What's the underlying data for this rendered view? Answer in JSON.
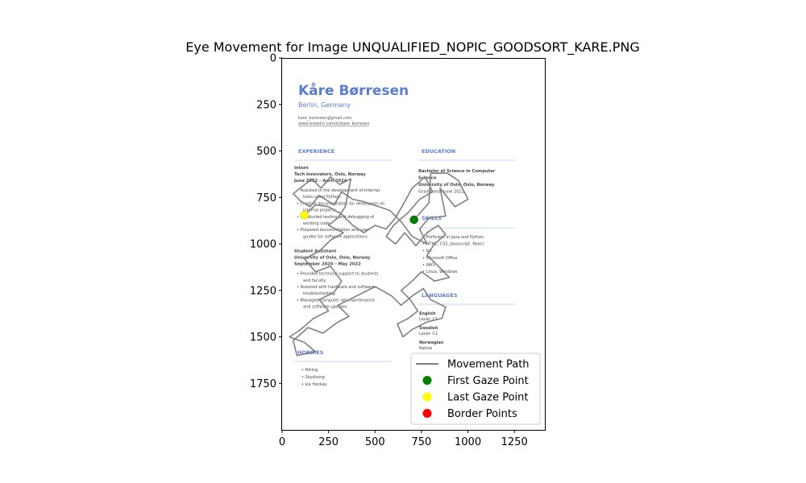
{
  "chart_data": {
    "type": "scatter",
    "title": "Eye Movement for Image UNQUALIFIED_NOPIC_GOODSORT_KARE.PNG",
    "xlabel": "",
    "ylabel": "",
    "xlim": [
      0,
      1414
    ],
    "ylim": [
      2000,
      0
    ],
    "x_ticks": [
      0,
      250,
      500,
      750,
      1000,
      1250
    ],
    "y_ticks": [
      0,
      250,
      500,
      750,
      1000,
      1250,
      1500,
      1750
    ],
    "grid": false,
    "legend_position": "lower-right",
    "legend": [
      {
        "label": "Movement Path",
        "kind": "line",
        "color": "#808080"
      },
      {
        "label": "First Gaze Point",
        "kind": "dot",
        "color": "#008000"
      },
      {
        "label": "Last Gaze Point",
        "kind": "dot",
        "color": "#ffff00"
      },
      {
        "label": "Border Points",
        "kind": "dot",
        "color": "#ff0000"
      }
    ],
    "first_gaze": [
      710,
      870
    ],
    "last_gaze": [
      120,
      845
    ],
    "movement_path": [
      [
        710,
        870
      ],
      [
        790,
        780
      ],
      [
        800,
        620
      ],
      [
        890,
        620
      ],
      [
        950,
        660
      ],
      [
        1000,
        760
      ],
      [
        930,
        800
      ],
      [
        850,
        700
      ],
      [
        880,
        850
      ],
      [
        790,
        860
      ],
      [
        740,
        920
      ],
      [
        780,
        1000
      ],
      [
        700,
        960
      ],
      [
        640,
        880
      ],
      [
        580,
        820
      ],
      [
        520,
        800
      ],
      [
        430,
        770
      ],
      [
        380,
        760
      ],
      [
        320,
        720
      ],
      [
        280,
        790
      ],
      [
        200,
        740
      ],
      [
        150,
        800
      ],
      [
        100,
        770
      ],
      [
        60,
        730
      ],
      [
        110,
        690
      ],
      [
        160,
        650
      ],
      [
        210,
        700
      ],
      [
        260,
        640
      ],
      [
        310,
        680
      ],
      [
        370,
        650
      ],
      [
        340,
        800
      ],
      [
        300,
        860
      ],
      [
        250,
        900
      ],
      [
        330,
        940
      ],
      [
        260,
        980
      ],
      [
        200,
        1040
      ],
      [
        120,
        1080
      ],
      [
        180,
        1150
      ],
      [
        260,
        1120
      ],
      [
        320,
        1200
      ],
      [
        280,
        1260
      ],
      [
        200,
        1300
      ],
      [
        250,
        1360
      ],
      [
        170,
        1400
      ],
      [
        100,
        1460
      ],
      [
        40,
        1500
      ],
      [
        120,
        1530
      ],
      [
        180,
        1580
      ],
      [
        80,
        1600
      ],
      [
        60,
        1520
      ],
      [
        140,
        1450
      ],
      [
        220,
        1480
      ],
      [
        300,
        1420
      ],
      [
        360,
        1390
      ],
      [
        300,
        1330
      ],
      [
        400,
        1280
      ],
      [
        500,
        1230
      ],
      [
        590,
        1280
      ],
      [
        640,
        1330
      ],
      [
        700,
        1280
      ],
      [
        760,
        1240
      ],
      [
        800,
        1300
      ],
      [
        880,
        1340
      ],
      [
        860,
        1400
      ],
      [
        780,
        1420
      ],
      [
        700,
        1460
      ],
      [
        650,
        1500
      ],
      [
        620,
        1430
      ],
      [
        680,
        1400
      ],
      [
        730,
        1360
      ],
      [
        690,
        1300
      ],
      [
        640,
        1250
      ],
      [
        700,
        1200
      ],
      [
        750,
        1150
      ],
      [
        820,
        1200
      ],
      [
        900,
        1180
      ],
      [
        840,
        1120
      ],
      [
        780,
        1060
      ],
      [
        820,
        1000
      ],
      [
        880,
        950
      ],
      [
        840,
        900
      ],
      [
        780,
        940
      ],
      [
        720,
        1010
      ],
      [
        660,
        940
      ],
      [
        610,
        1000
      ],
      [
        560,
        960
      ],
      [
        600,
        900
      ],
      [
        680,
        830
      ],
      [
        740,
        760
      ],
      [
        810,
        720
      ],
      [
        770,
        640
      ],
      [
        700,
        700
      ],
      [
        650,
        790
      ],
      [
        610,
        860
      ],
      [
        560,
        920
      ],
      [
        500,
        900
      ],
      [
        440,
        940
      ],
      [
        380,
        900
      ],
      [
        320,
        840
      ],
      [
        250,
        800
      ],
      [
        180,
        790
      ],
      [
        120,
        845
      ]
    ]
  },
  "background": {
    "name": "Kåre Børresen",
    "location": "Berlin, Germany",
    "email": "kare_borresen@gmail.com",
    "linkedin": "www.linkedin.com/in/kare_borresen",
    "sections": {
      "experience": "EXPERIENCE",
      "education": "EDUCATION",
      "skills": "SKILLS",
      "languages": "LANGUAGES",
      "hobbies": "HOBBIES"
    },
    "experience": [
      {
        "role": "Intern",
        "company": "Tech Innovators, Oslo, Norway",
        "dates": "June 2022 – April 2024",
        "bullets": [
          "Assisted in the development of internal",
          "tools using Python.",
          "Created documentation for developers on",
          "internal projects.",
          "Conducted testing and debugging of",
          "existing code.",
          "Prepared documentation and user",
          "guides for software applications."
        ]
      },
      {
        "role": "Student Assistant",
        "company": "University of Oslo, Oslo, Norway",
        "dates": "September 2020 – May 2022",
        "bullets": [
          "Provided technical support to students",
          "and faculty.",
          "Assisted with hardware and software",
          "troubleshooting.",
          "Managed computer lab maintenance",
          "and software updates."
        ]
      }
    ],
    "education": [
      "Bachelor of Science in Computer",
      "Science",
      "University of Oslo, Oslo, Norway",
      "Graduated: June 2022"
    ],
    "skills": [
      "Proficient in Java and Python",
      "HTML, CSS, Javascript, React",
      "Git",
      "Microsoft Office",
      "AWS",
      "Linux, Windows"
    ],
    "languages": [
      "English",
      "Level: C1",
      "Swedish",
      "Level: C1",
      "Norwegian",
      "Native"
    ],
    "hobbies": [
      "Hiking",
      "Skydiving",
      "Ice Hockey"
    ]
  }
}
